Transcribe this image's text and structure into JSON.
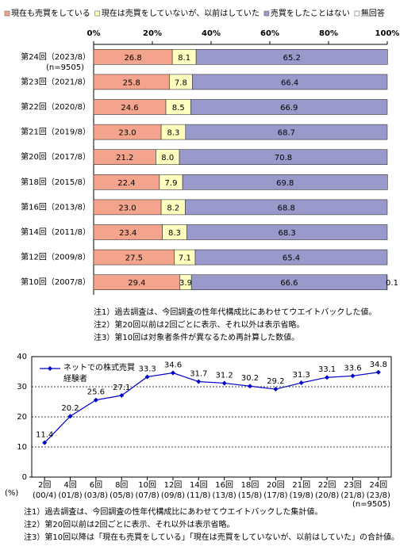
{
  "chart_data": [
    {
      "type": "stacked-bar",
      "categories": [
        "第24回（2023/8）",
        "第23回（2021/8）",
        "第22回（2020/8）",
        "第21回（2019/8）",
        "第20回（2017/8）",
        "第18回（2015/8）",
        "第16回（2013/8）",
        "第14回（2011/8）",
        "第12回（2009/8）",
        "第10回（2007/8）"
      ],
      "annotation": "(n=9505)",
      "series": [
        {
          "name": "現在も売買をしている",
          "color": "#f4a48c",
          "values": [
            26.8,
            25.8,
            24.6,
            23.0,
            21.2,
            22.4,
            23.0,
            23.4,
            27.5,
            29.4
          ],
          "value_labels": [
            "26.8",
            "25.8",
            "24.6",
            "23.0",
            "21.2",
            "22.4",
            "23.0",
            "23.4",
            "27.5",
            "29.4"
          ]
        },
        {
          "name": "現在は売買をしていないが、以前はしていた",
          "color": "#ffffc0",
          "values": [
            8.1,
            7.8,
            8.5,
            8.3,
            8.0,
            7.9,
            8.2,
            8.3,
            7.1,
            3.9
          ],
          "value_labels": [
            "8.1",
            "7.8",
            "8.5",
            "8.3",
            "8.0",
            "7.9",
            "8.2",
            "8.3",
            "7.1",
            "3.9"
          ]
        },
        {
          "name": "売買をしたことはない",
          "color": "#9999cc",
          "values": [
            65.2,
            66.4,
            66.9,
            68.7,
            70.8,
            69.8,
            68.8,
            68.3,
            65.4,
            66.6
          ],
          "value_labels": [
            "65.2",
            "66.4",
            "66.9",
            "68.7",
            "70.8",
            "69.8",
            "68.8",
            "68.3",
            "65.4",
            "66.6"
          ]
        },
        {
          "name": "無回答",
          "color": "#ffffff",
          "values": [
            null,
            null,
            null,
            null,
            null,
            null,
            null,
            null,
            null,
            0.1
          ],
          "value_labels": [
            null,
            null,
            null,
            null,
            null,
            null,
            null,
            null,
            null,
            "0.1"
          ]
        }
      ],
      "xlim": [
        0,
        100
      ],
      "xticks": [
        {
          "value": 0,
          "label": "0%"
        },
        {
          "value": 20,
          "label": "20%"
        },
        {
          "value": 40,
          "label": "40%"
        },
        {
          "value": 60,
          "label": "60%"
        },
        {
          "value": 80,
          "label": "80%"
        },
        {
          "value": 100,
          "label": "100%"
        }
      ],
      "notes": [
        "注1）過去調査は、今回調査の性年代構成比にあわせてウエイトバックした値。",
        "注2）第20回以前は2回ごとに表示、それ以外は表示省略。",
        "注3）第10回は対象者条件が異なるため再計算した数値。"
      ]
    },
    {
      "type": "line",
      "categories": [
        "2回",
        "4回",
        "6回",
        "8回",
        "10回",
        "12回",
        "14回",
        "16回",
        "18回",
        "20回",
        "21回",
        "22回",
        "23回",
        "24回"
      ],
      "periods": [
        "(00/4)",
        "(01/8)",
        "(03/8)",
        "(05/8)",
        "(07/8)",
        "(09/8)",
        "(11/8)",
        "(13/8)",
        "(15/8)",
        "(17/8)",
        "(19/8)",
        "(20/8)",
        "(21/8)",
        "(23/8)"
      ],
      "series": [
        {
          "name": "ネットでの株式売買経験者",
          "color": "#0000cc",
          "values": [
            11.4,
            20.2,
            25.6,
            27.1,
            33.3,
            34.6,
            31.7,
            31.2,
            30.2,
            29.2,
            31.3,
            33.1,
            33.6,
            34.8
          ]
        }
      ],
      "ylim": [
        0,
        40
      ],
      "yticks": [
        0,
        10,
        20,
        30,
        40
      ],
      "grid": true,
      "y_label": "(%)",
      "annotation": "(n=9505)",
      "notes": [
        "注1）過去調査は、今回調査の性年代構成比にあわせてウエイトバックした集計値。",
        "注2）第20回以前は2回ごとに表示、それ以外は表示省略。",
        "注3）第10回以降は「現在も売買をしている」「現在は売買をしていないが、以前はしていた」の合計値。"
      ]
    }
  ]
}
